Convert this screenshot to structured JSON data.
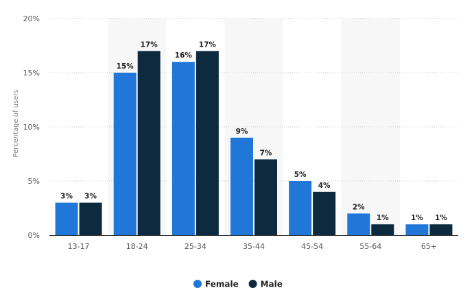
{
  "chart_data": {
    "type": "bar",
    "categories": [
      "13-17",
      "18-24",
      "25-34",
      "35-44",
      "45-54",
      "55-64",
      "65+"
    ],
    "series": [
      {
        "name": "Female",
        "values": [
          3,
          15,
          16,
          9,
          5,
          2,
          1
        ],
        "color": "#2077d8"
      },
      {
        "name": "Male",
        "values": [
          3,
          17,
          17,
          7,
          4,
          1,
          1
        ],
        "color": "#0d2a3e"
      }
    ],
    "data_labels": {
      "Female": [
        "3%",
        "15%",
        "16%",
        "9%",
        "5%",
        "2%",
        "1%"
      ],
      "Male": [
        "3%",
        "17%",
        "17%",
        "7%",
        "4%",
        "1%",
        "1%"
      ]
    },
    "title": "",
    "xlabel": "",
    "ylabel": "Percentage of users",
    "ylim": [
      0,
      20
    ],
    "yticks": [
      0,
      5,
      10,
      15,
      20
    ],
    "ytick_labels": [
      "0%",
      "5%",
      "10%",
      "15%",
      "20%"
    ],
    "grid": true,
    "legend_position": "bottom-center",
    "alternating_band_color": "#f7f7f7",
    "axis_color": "#333333",
    "grid_color": "#c8c8c8"
  }
}
